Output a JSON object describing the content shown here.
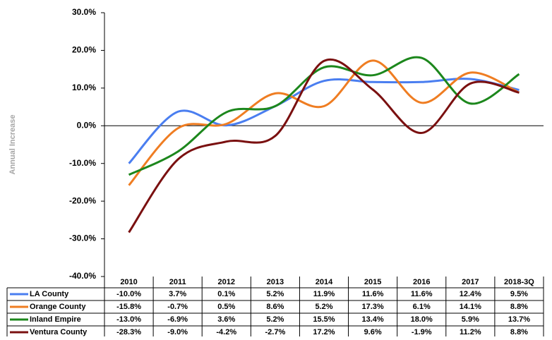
{
  "chart_data": {
    "type": "line",
    "y_label": "Annual Increase",
    "categories": [
      "2010",
      "2011",
      "2012",
      "2013",
      "2014",
      "2015",
      "2016",
      "2017",
      "2018-3Q"
    ],
    "series": [
      {
        "name": "LA County",
        "color": "#4a7ef0",
        "values": [
          -10.0,
          3.7,
          0.1,
          5.2,
          11.9,
          11.6,
          11.6,
          12.4,
          9.5
        ],
        "value_labels": [
          "-10.0%",
          "3.7%",
          "0.1%",
          "5.2%",
          "11.9%",
          "11.6%",
          "11.6%",
          "12.4%",
          "9.5%"
        ]
      },
      {
        "name": "Orange County",
        "color": "#ef7d22",
        "values": [
          -15.8,
          -0.7,
          0.5,
          8.6,
          5.2,
          17.3,
          6.1,
          14.1,
          8.8
        ],
        "value_labels": [
          "-15.8%",
          "-0.7%",
          "0.5%",
          "8.6%",
          "5.2%",
          "17.3%",
          "6.1%",
          "14.1%",
          "8.8%"
        ]
      },
      {
        "name": "Inland Empire",
        "color": "#1c871c",
        "values": [
          -13.0,
          -6.9,
          3.6,
          5.2,
          15.5,
          13.4,
          18.0,
          5.9,
          13.7
        ],
        "value_labels": [
          "-13.0%",
          "-6.9%",
          "3.6%",
          "5.2%",
          "15.5%",
          "13.4%",
          "18.0%",
          "5.9%",
          "13.7%"
        ]
      },
      {
        "name": "Ventura County",
        "color": "#7a1010",
        "values": [
          -28.3,
          -9.0,
          -4.2,
          -2.7,
          17.2,
          9.6,
          -1.9,
          11.2,
          8.8
        ],
        "value_labels": [
          "-28.3%",
          "-9.0%",
          "-4.2%",
          "-2.7%",
          "17.2%",
          "9.6%",
          "-1.9%",
          "11.2%",
          "8.8%"
        ]
      }
    ],
    "ylim": [
      -40,
      30
    ],
    "yticks": [
      {
        "value": -40,
        "label": "-40.0%"
      },
      {
        "value": -30,
        "label": "-30.0%"
      },
      {
        "value": -20,
        "label": "-20.0%"
      },
      {
        "value": -10,
        "label": "-10.0%"
      },
      {
        "value": 0,
        "label": "0.0%"
      },
      {
        "value": 10,
        "label": "10.0%"
      },
      {
        "value": 20,
        "label": "20.0%"
      },
      {
        "value": 30,
        "label": "30.0%"
      }
    ],
    "grid": false,
    "smooth": true
  }
}
